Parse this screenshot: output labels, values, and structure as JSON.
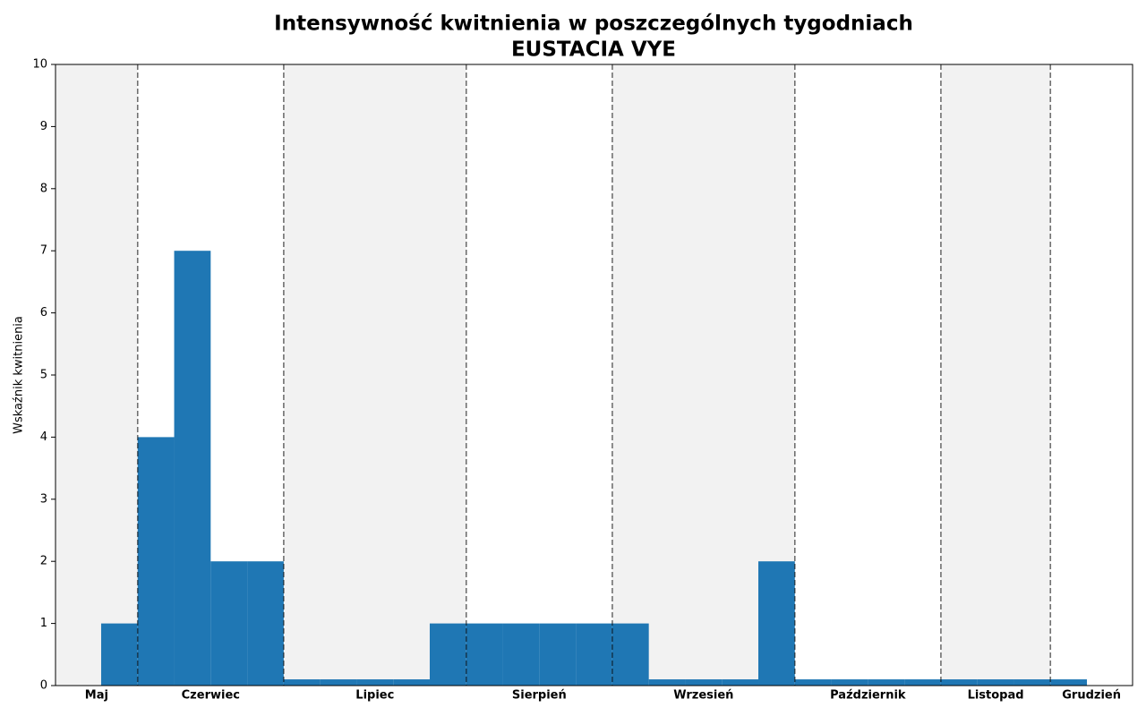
{
  "chart_data": {
    "type": "histogram",
    "title": "Intensywność kwitnienia w poszczególnych tygodniach",
    "subtitle": "EUSTACIA VYE",
    "y_label": "Wskaźnik kwitnienia",
    "bins": [
      0,
      1,
      2,
      3,
      4,
      5,
      6,
      7,
      8,
      9,
      10,
      11,
      12,
      13,
      14,
      15,
      16,
      17,
      18,
      19,
      20,
      21,
      22,
      23,
      24,
      25,
      26,
      27
    ],
    "values": [
      1,
      4,
      7,
      2,
      2,
      0.1,
      0.1,
      0.1,
      0.1,
      1,
      1,
      1,
      1,
      1,
      1,
      0.1,
      0.1,
      0.1,
      2,
      0.1,
      0.1,
      0.1,
      0.1,
      0.1,
      0.1,
      0.1,
      0.1
    ],
    "color": "#1f77b4",
    "months": [
      "Maj",
      "Czerwiec",
      "Lipiec",
      "Sierpień",
      "Wrzesień",
      "Październik",
      "Listopad",
      "Grudzień"
    ],
    "month_boundaries": [
      1,
      5,
      10,
      14,
      19,
      23,
      26
    ],
    "xlim": [
      -1.25,
      28.25
    ],
    "ylim": [
      0,
      10
    ],
    "yticks": [
      0,
      1,
      2,
      3,
      4,
      5,
      6,
      7,
      8,
      9,
      10
    ]
  }
}
